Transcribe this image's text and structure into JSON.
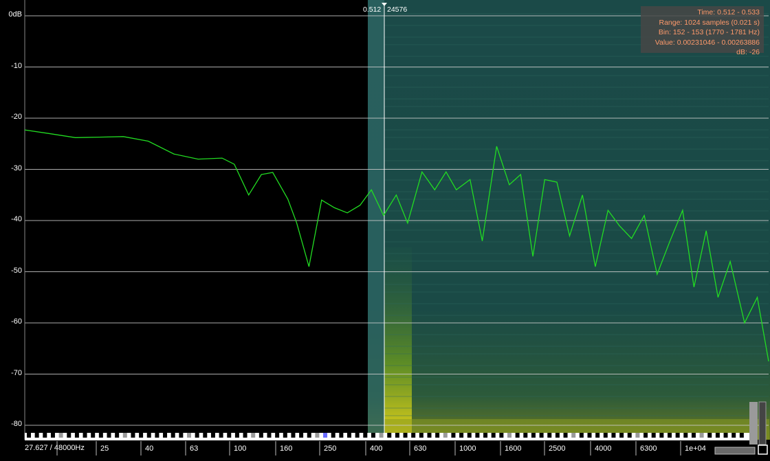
{
  "info": {
    "time": "Time: 0.512 - 0.533",
    "range": "Range: 1024 samples (0.021 s)",
    "bin": "Bin: 152 - 153 (1770 - 1781 Hz)",
    "value": "Value: 0.00231046 - 0.00263886",
    "db": "dB: -26"
  },
  "cursor": {
    "time_label": "0.512",
    "sample_label": "24576"
  },
  "status": {
    "position": "27.627",
    "rate": "48000Hz"
  },
  "y_axis": {
    "labels": [
      "0dB",
      "-10",
      "-20",
      "-30",
      "-40",
      "-50",
      "-60",
      "-70",
      "-80"
    ]
  },
  "x_axis": {
    "labels": [
      "25",
      "40",
      "63",
      "100",
      "160",
      "250",
      "400",
      "630",
      "1000",
      "1600",
      "2500",
      "4000",
      "6300",
      "1e+04"
    ]
  },
  "colors": {
    "curve": "#22dd22",
    "info_text": "#ff9a6b",
    "grid": "#cccccc"
  },
  "chart_data": {
    "type": "line",
    "x_scale": "log",
    "xlabel": "",
    "ylabel": "",
    "ylim": [
      -85,
      0
    ],
    "x": [
      20,
      25,
      32,
      40,
      50,
      63,
      80,
      100,
      125,
      140,
      160,
      180,
      200,
      230,
      250,
      280,
      315,
      355,
      400,
      450,
      500,
      560,
      630,
      700,
      800,
      900,
      1000,
      1100,
      1250,
      1400,
      1600,
      1800,
      2000,
      2240,
      2500,
      2800,
      3150,
      3550,
      4000,
      4500,
      5000,
      5600,
      6300,
      7100,
      8000,
      9000,
      10000,
      11200,
      12500,
      14000,
      16000,
      18000,
      20000
    ],
    "series": [
      {
        "values": [
          -22.3,
          -23.0,
          -23.8,
          -23.7,
          -23.6,
          -24.5,
          -27.0,
          -28.0,
          -27.8,
          -29.0,
          -35.0,
          -31.0,
          -30.6,
          -35.8,
          -40.5,
          -49.0,
          -36.0,
          -37.5,
          -38.5,
          -37.0,
          -34.0,
          -39.0,
          -35.0,
          -40.5,
          -30.5,
          -34.0,
          -30.5,
          -34.0,
          -32.0,
          -44.0,
          -25.5,
          -33.0,
          -31.0,
          -47.0,
          -32.0,
          -32.5,
          -43.0,
          -35.0,
          -49.0,
          -38.0,
          -41.0,
          -43.5,
          -39.0,
          -50.5,
          -44.0,
          -38.0,
          -53.0,
          -42.0,
          -55.0,
          -48.0,
          -60.0,
          -55.0,
          -67.5
        ]
      }
    ]
  }
}
